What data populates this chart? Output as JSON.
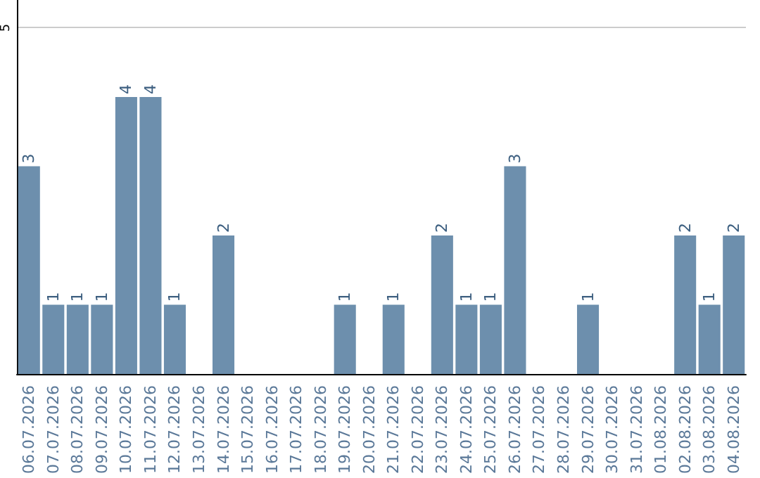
{
  "chart_data": {
    "type": "bar",
    "categories": [
      "06.07.2026",
      "07.07.2026",
      "08.07.2026",
      "09.07.2026",
      "10.07.2026",
      "11.07.2026",
      "12.07.2026",
      "13.07.2026",
      "14.07.2026",
      "15.07.2026",
      "16.07.2026",
      "17.07.2026",
      "18.07.2026",
      "19.07.2026",
      "20.07.2026",
      "21.07.2026",
      "22.07.2026",
      "23.07.2026",
      "24.07.2026",
      "25.07.2026",
      "26.07.2026",
      "27.07.2026",
      "28.07.2026",
      "29.07.2026",
      "30.07.2026",
      "31.07.2026",
      "01.08.2026",
      "02.08.2026",
      "03.08.2026",
      "04.08.2026"
    ],
    "values": [
      3,
      1,
      1,
      1,
      4,
      4,
      1,
      0,
      2,
      0,
      0,
      0,
      0,
      1,
      0,
      1,
      0,
      2,
      1,
      1,
      3,
      0,
      0,
      1,
      0,
      0,
      0,
      2,
      1,
      2
    ],
    "value_labels": [
      "3",
      "1",
      "1",
      "1",
      "4",
      "4",
      "1",
      null,
      "2",
      null,
      null,
      null,
      null,
      "1",
      null,
      "1",
      null,
      "2",
      "1",
      "1",
      "3",
      null,
      null,
      "1",
      null,
      null,
      null,
      "2",
      "1",
      "2"
    ],
    "color": "#6d8fad",
    "ylim": [
      0,
      5.4
    ],
    "yticks": [
      5
    ],
    "grid": "y"
  }
}
